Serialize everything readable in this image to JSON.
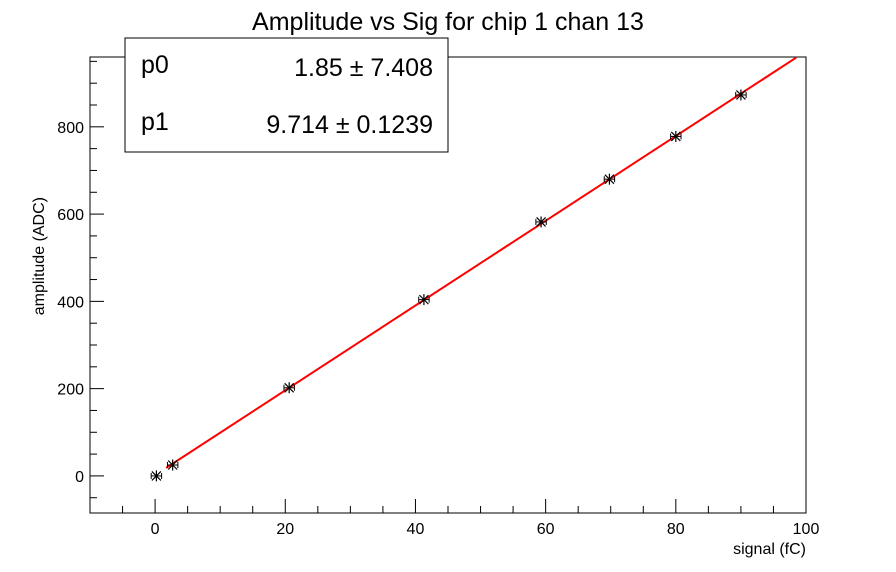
{
  "chart_data": {
    "type": "scatter",
    "title": "Amplitude vs Sig for chip 1 chan 13",
    "xlabel": "signal (fC)",
    "ylabel": "amplitude (ADC)",
    "xlim": [
      -10,
      100
    ],
    "ylim": [
      -85,
      960
    ],
    "xticks": [
      0,
      20,
      40,
      60,
      80,
      100
    ],
    "yticks": [
      0,
      200,
      400,
      600,
      800
    ],
    "grid": false,
    "series": [
      {
        "points": [
          {
            "x": 0.2,
            "y": 0
          },
          {
            "x": 2.7,
            "y": 25
          },
          {
            "x": 20.6,
            "y": 202
          },
          {
            "x": 41.3,
            "y": 404
          },
          {
            "x": 59.3,
            "y": 582
          },
          {
            "x": 69.8,
            "y": 680
          },
          {
            "x": 80.0,
            "y": 778
          },
          {
            "x": 90.0,
            "y": 873
          }
        ],
        "xerr": 0.8,
        "color": "#000000",
        "marker": "asterisk"
      }
    ],
    "fit": {
      "type": "linear",
      "color": "#ff0000",
      "x_range": [
        1.7,
        98.5
      ],
      "p0": 1.85,
      "p1": 9.714
    },
    "stats_box": {
      "position": "top-left",
      "rows": [
        {
          "name": "p0",
          "value": "1.85 ± 7.408"
        },
        {
          "name": "p1",
          "value": "9.714 ± 0.1239"
        }
      ]
    }
  }
}
